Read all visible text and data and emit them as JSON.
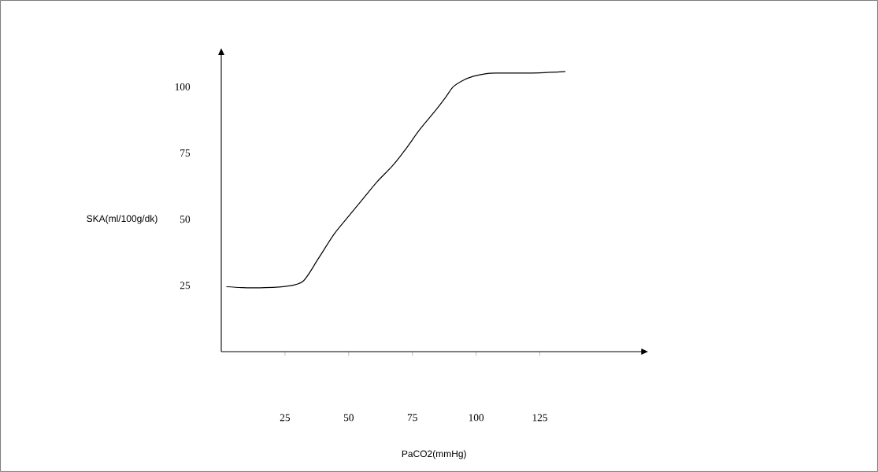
{
  "chart_data": {
    "type": "line",
    "xlabel": "PaCO2(mmHg)",
    "ylabel": "SKA(ml/100g/dk)",
    "x": [
      2,
      8,
      15,
      25,
      32,
      38,
      44,
      49,
      55,
      61,
      67,
      72,
      78,
      84,
      88,
      91,
      95,
      99,
      104,
      108,
      115,
      125,
      135
    ],
    "series": [
      {
        "color": "#000000",
        "values": [
          24.5,
          24.2,
          24.1,
          24.6,
          26.5,
          35,
          44,
          50,
          57,
          64,
          70,
          76,
          84,
          91,
          96,
          100,
          102.5,
          104,
          105,
          105.2,
          105.2,
          105.3,
          105.8
        ]
      }
    ],
    "xlim": [
      0,
      165
    ],
    "ylim": [
      0,
      112
    ],
    "xticks": [
      25,
      50,
      75,
      100,
      125
    ],
    "yticks": [
      25,
      50,
      75,
      100
    ],
    "grid": false,
    "marker": "none",
    "line_style": "solid"
  }
}
